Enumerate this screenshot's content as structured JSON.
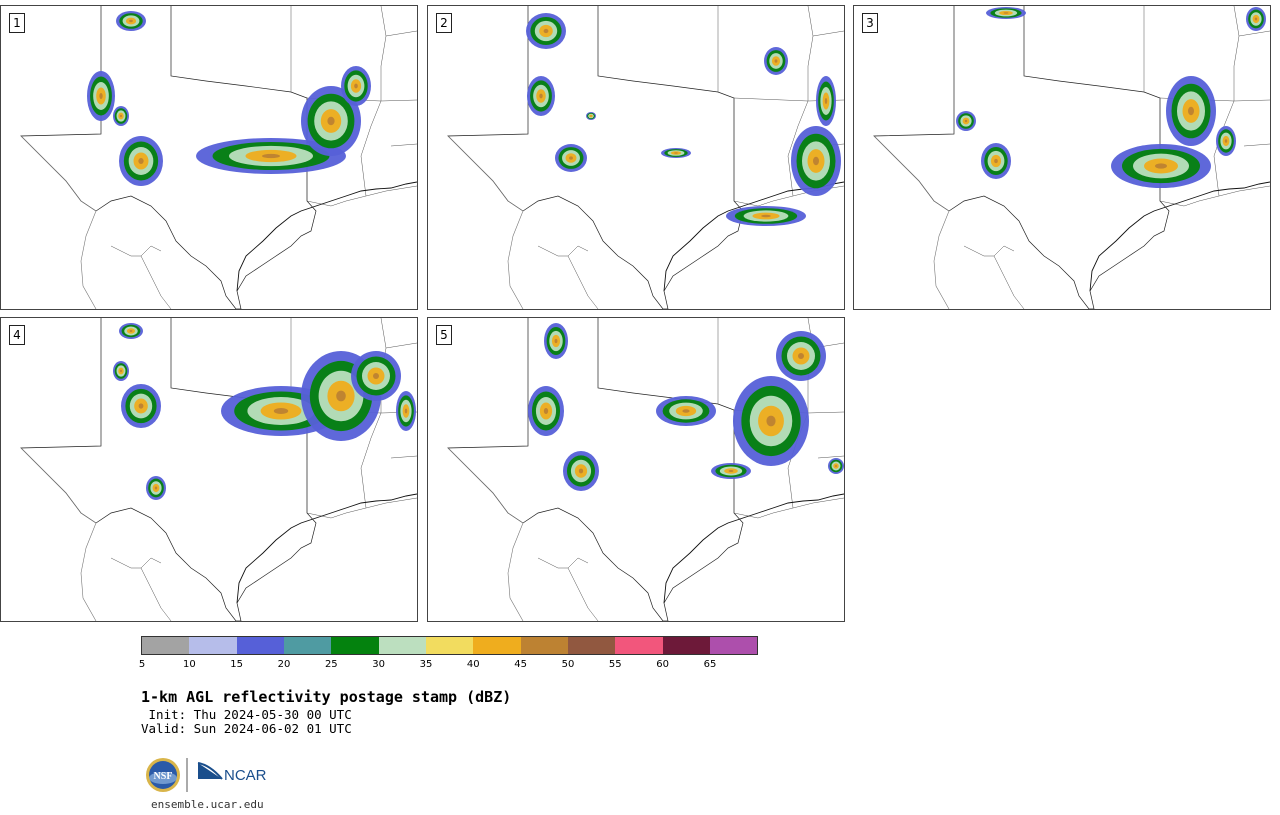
{
  "panels": [
    {
      "number": "1"
    },
    {
      "number": "2"
    },
    {
      "number": "3"
    },
    {
      "number": "4"
    },
    {
      "number": "5"
    }
  ],
  "colorbar": {
    "ticks": [
      "5",
      "10",
      "15",
      "20",
      "25",
      "30",
      "35",
      "40",
      "45",
      "50",
      "55",
      "60",
      "65"
    ],
    "colors": [
      "#a3a3a3",
      "#b6bdea",
      "#5660d8",
      "#4f9ba2",
      "#04820e",
      "#bcdfbf",
      "#f2dc5f",
      "#efad1e",
      "#bd8232",
      "#915840",
      "#f2567c",
      "#6d1939",
      "#ad4fac"
    ]
  },
  "title": "1-km AGL reflectivity postage stamp (dBZ)",
  "init": " Init: Thu 2024-05-30 00 UTC",
  "valid": "Valid: Sun 2024-06-02 01 UTC",
  "logos": {
    "nsf": "NSF",
    "ncar": "NCAR"
  },
  "site": "ensemble.ucar.edu"
}
